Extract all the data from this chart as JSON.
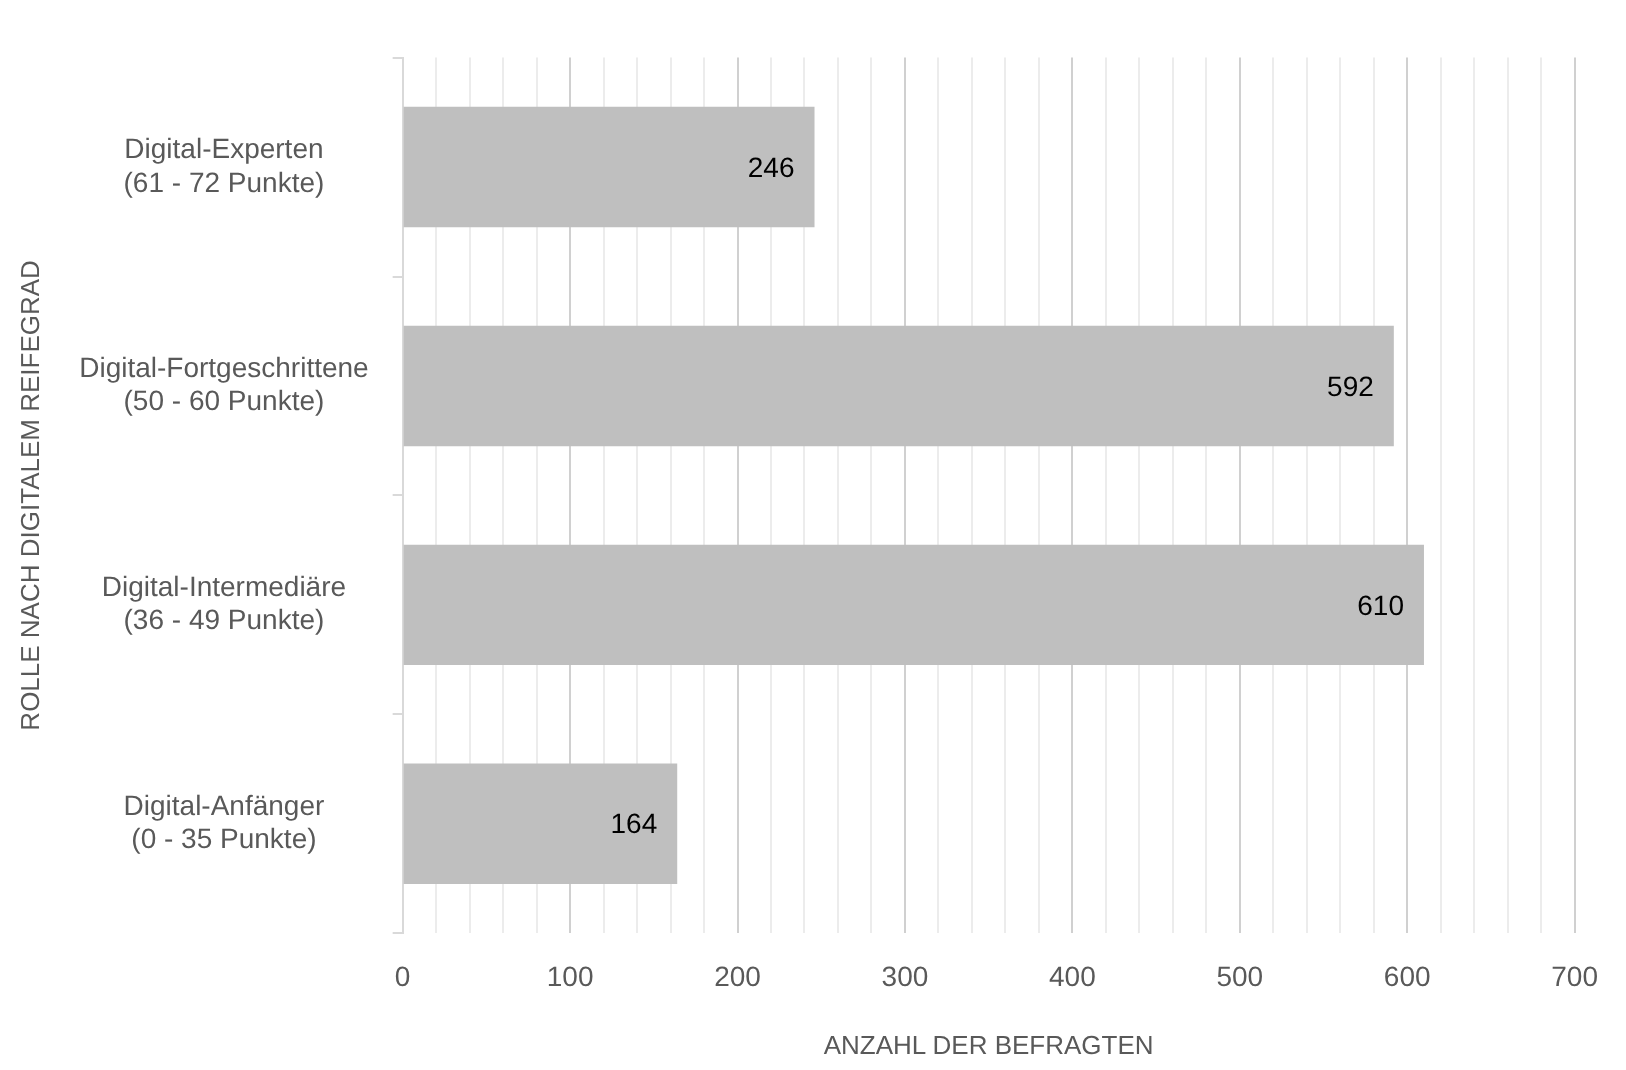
{
  "chart_data": {
    "type": "bar",
    "orientation": "horizontal",
    "xlabel": "ANZAHL DER BEFRAGTEN",
    "ylabel": "ROLLE NACH DIGITALEM REIFEGRAD",
    "categories": [
      "Digital-Experten\n(61 - 72 Punkte)",
      "Digital-Fortgeschrittene\n(50 - 60 Punkte)",
      "Digital-Intermediäre\n(36 - 49 Punkte)",
      "Digital-Anfänger\n(0 - 35 Punkte)"
    ],
    "values": [
      246,
      592,
      610,
      164
    ],
    "color": "#bfbfbf",
    "data_labels": true,
    "grid": "x",
    "legend": false,
    "xlim": [
      0,
      700
    ],
    "xticks": [
      0,
      {
        "value": 20,
        "label": null
      },
      {
        "value": 40,
        "label": null
      },
      {
        "value": 60,
        "label": null
      },
      {
        "value": 80,
        "label": null
      },
      100,
      {
        "value": 120,
        "label": null
      },
      {
        "value": 140,
        "label": null
      },
      {
        "value": 160,
        "label": null
      },
      {
        "value": 180,
        "label": null
      },
      200,
      {
        "value": 220,
        "label": null
      },
      {
        "value": 240,
        "label": null
      },
      {
        "value": 260,
        "label": null
      },
      {
        "value": 280,
        "label": null
      },
      300,
      {
        "value": 320,
        "label": null
      },
      {
        "value": 340,
        "label": null
      },
      {
        "value": 360,
        "label": null
      },
      {
        "value": 380,
        "label": null
      },
      400,
      {
        "value": 420,
        "label": null
      },
      {
        "value": 440,
        "label": null
      },
      {
        "value": 460,
        "label": null
      },
      {
        "value": 480,
        "label": null
      },
      500,
      {
        "value": 520,
        "label": null
      },
      {
        "value": 540,
        "label": null
      },
      {
        "value": 560,
        "label": null
      },
      {
        "value": 580,
        "label": null
      },
      600,
      {
        "value": 620,
        "label": null
      },
      {
        "value": 640,
        "label": null
      },
      {
        "value": 660,
        "label": null
      },
      {
        "value": 680,
        "label": null
      },
      700
    ]
  }
}
